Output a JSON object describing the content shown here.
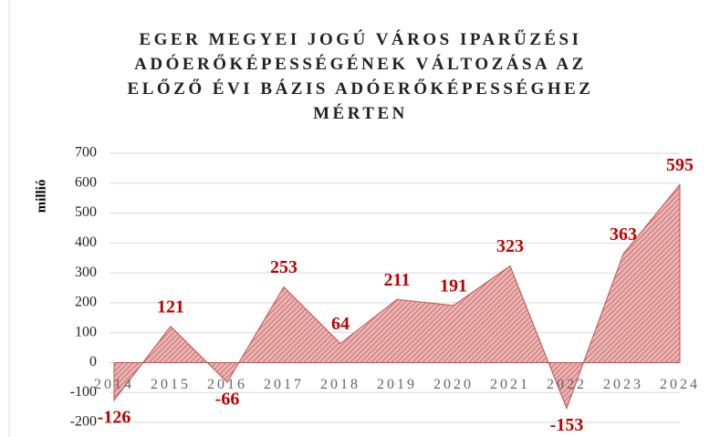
{
  "chart_data": {
    "type": "area",
    "title": "EGER MEGYEI JOGÚ VÁROS IPARŰZÉSI ADÓERŐKÉPESSÉGÉNEK VÁLTOZÁSA AZ ELŐZŐ ÉVI BÁZIS ADÓERŐKÉPESSÉGHEZ MÉRTEN",
    "y_label": "millió",
    "categories": [
      "2014",
      "2015",
      "2016",
      "2017",
      "2018",
      "2019",
      "2020",
      "2021",
      "2022",
      "2023",
      "2024"
    ],
    "values": [
      -126,
      121,
      -66,
      253,
      64,
      211,
      191,
      323,
      -153,
      363,
      595
    ],
    "color": "#c0504d",
    "label_color": "#c00000",
    "ylim": [
      -200,
      700
    ],
    "yticks": [
      -200,
      -100,
      0,
      100,
      200,
      300,
      400,
      500,
      600,
      700
    ],
    "grid": true
  }
}
